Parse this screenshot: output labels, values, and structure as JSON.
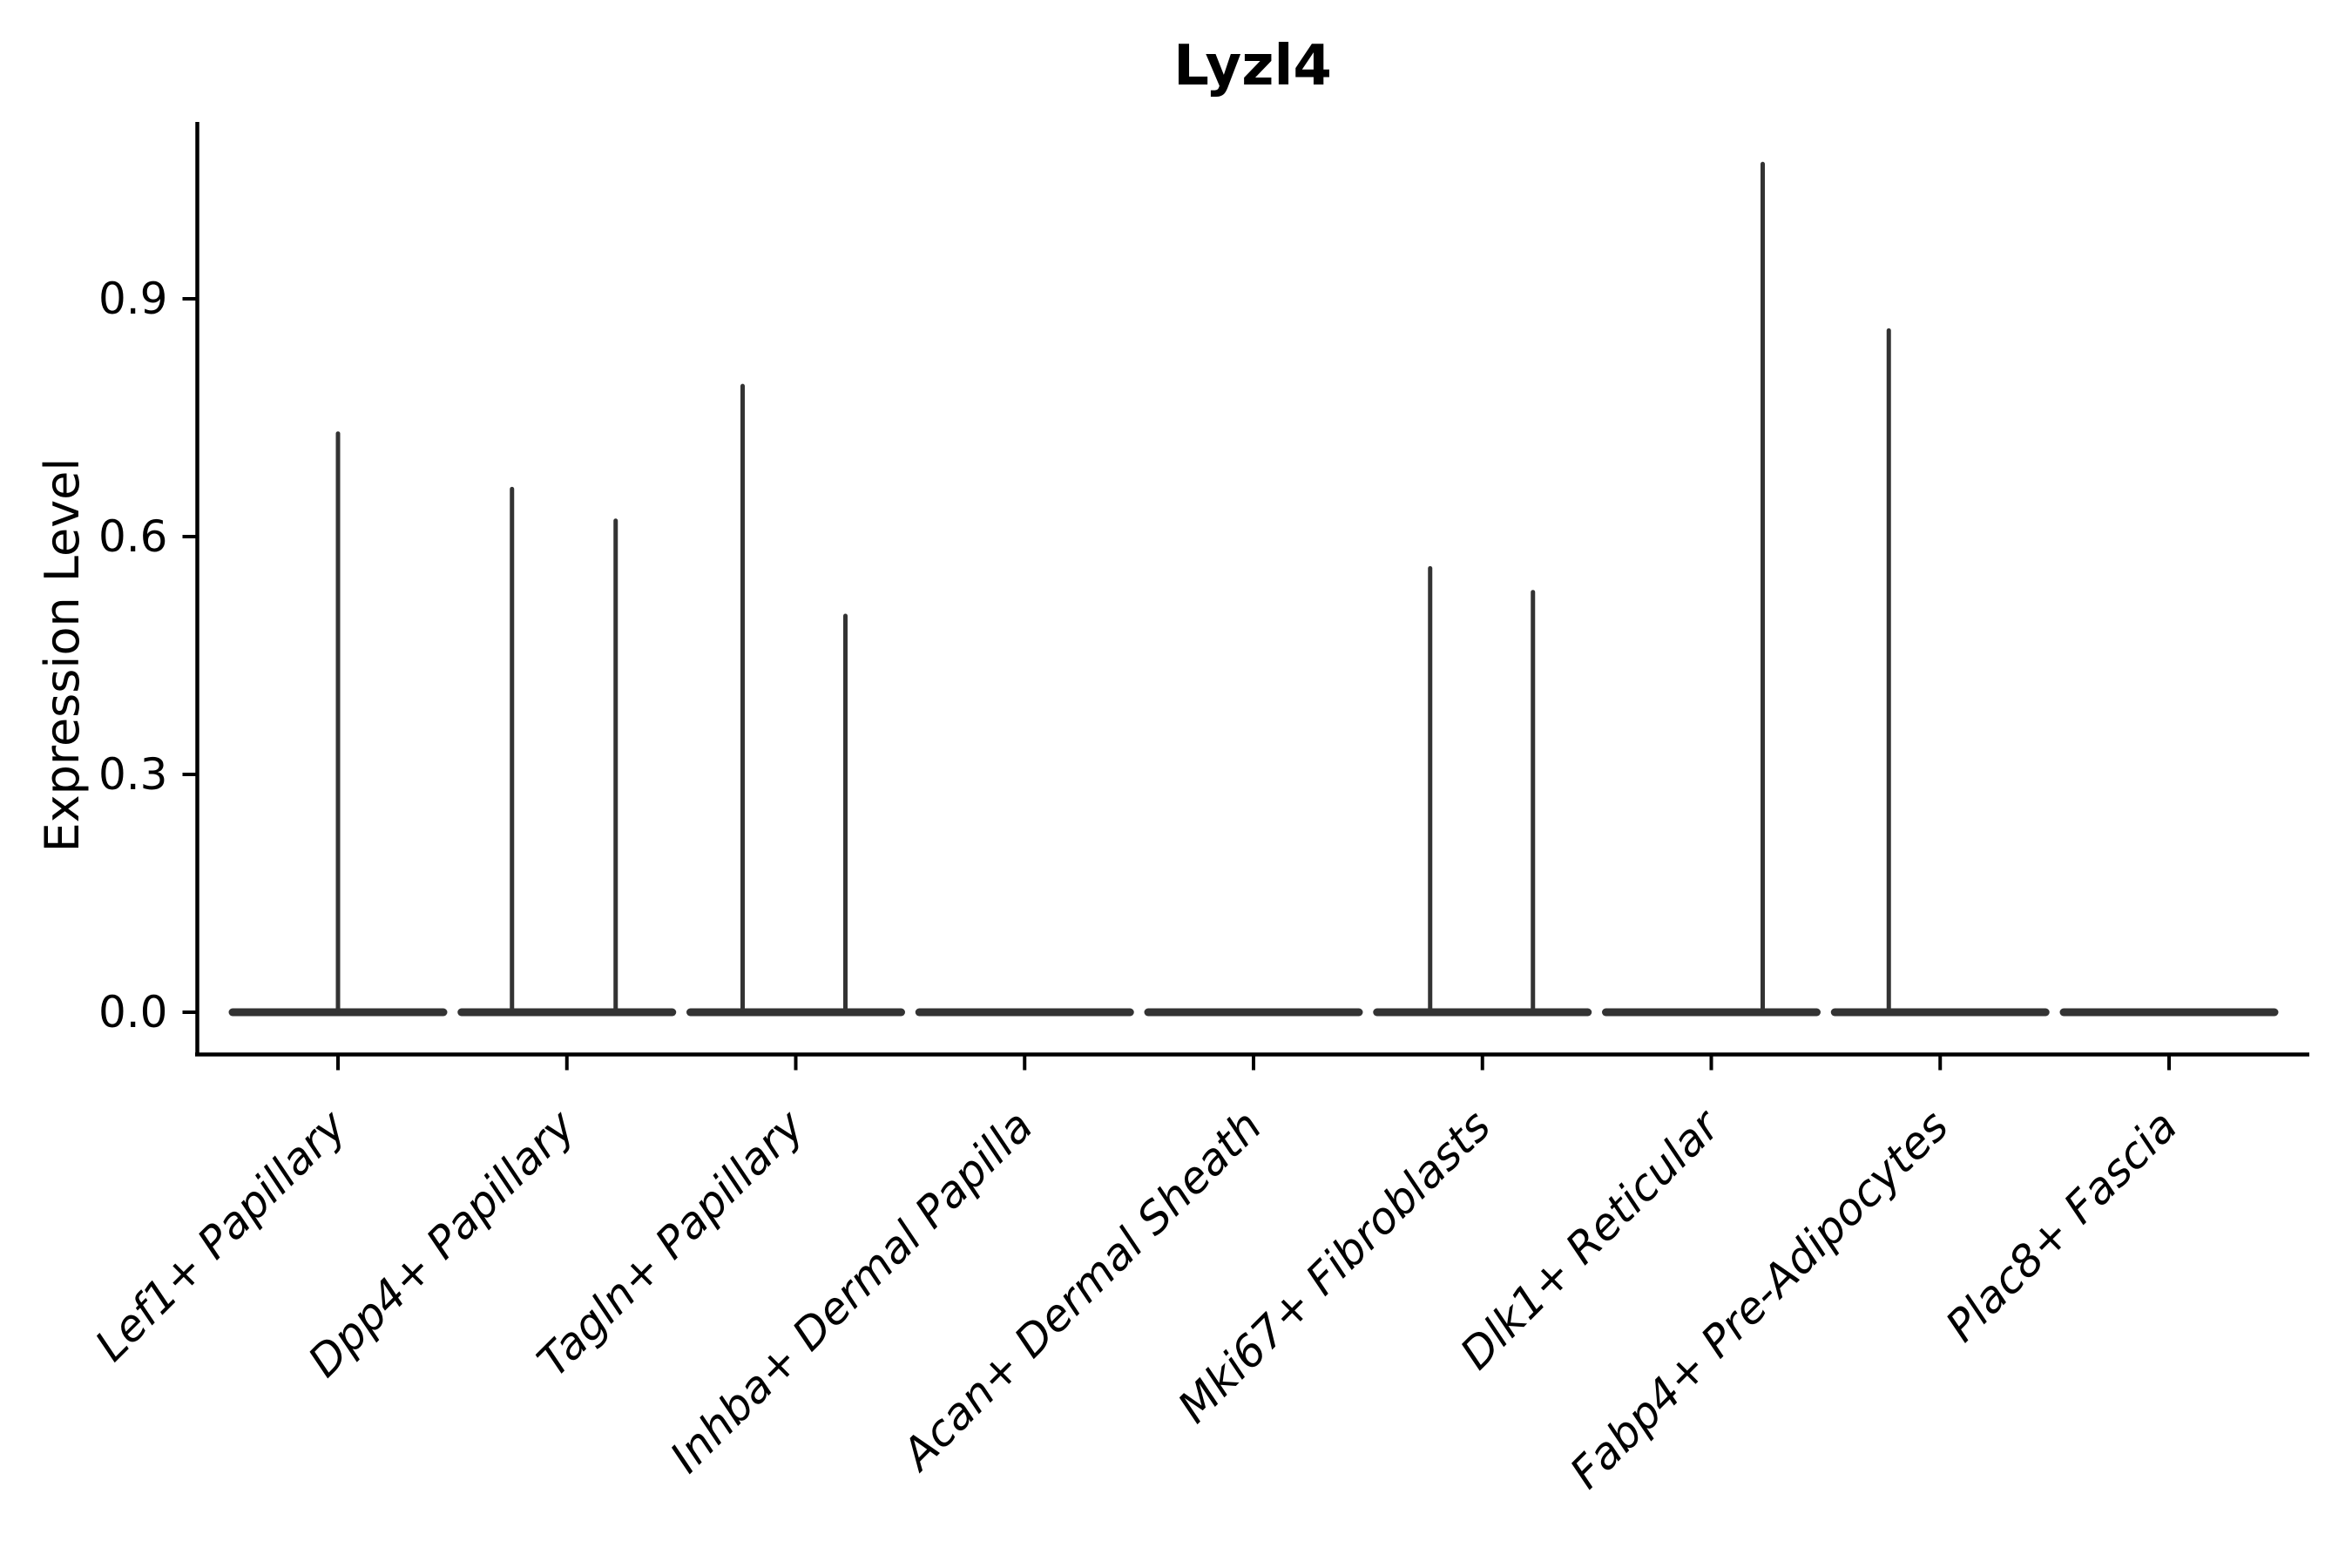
{
  "chart_data": {
    "type": "violin",
    "title": "Lyzl4",
    "ylabel": "Expression Level",
    "xlabel": "",
    "background": "#ffffff",
    "grid": false,
    "legend": "none",
    "ylim": [
      -0.05,
      1.12
    ],
    "y_ticks": [
      "0.0",
      "0.3",
      "0.6",
      "0.9"
    ],
    "categories": [
      "Lef1+ Papillary",
      "Dpp4+ Papillary",
      "Tagln+ Papillary",
      "Inhba+ Dermal Papilla",
      "Acan+ Dermal Sheath",
      "Mki67+ Fibroblasts",
      "Dlk1+ Reticular",
      "Fabp4+ Pre-Adipocytes",
      "Plac8+ Fascia"
    ],
    "violins": [
      {
        "category": "Lef1+ Papillary",
        "baseline_value": 0.0,
        "spikes": [
          {
            "dx": 0,
            "value": 0.73
          }
        ]
      },
      {
        "category": "Dpp4+ Papillary",
        "baseline_value": 0.0,
        "spikes": [
          {
            "dx": -63,
            "value": 0.66
          },
          {
            "dx": 56,
            "value": 0.62
          }
        ]
      },
      {
        "category": "Tagln+ Papillary",
        "baseline_value": 0.0,
        "spikes": [
          {
            "dx": -61,
            "value": 0.79
          },
          {
            "dx": 57,
            "value": 0.5
          }
        ]
      },
      {
        "category": "Inhba+ Dermal Papilla",
        "baseline_value": 0.0,
        "spikes": []
      },
      {
        "category": "Acan+ Dermal Sheath",
        "baseline_value": 0.0,
        "spikes": []
      },
      {
        "category": "Mki67+ Fibroblasts",
        "baseline_value": 0.0,
        "spikes": [
          {
            "dx": -60,
            "value": 0.56
          },
          {
            "dx": 58,
            "value": 0.53
          }
        ]
      },
      {
        "category": "Dlk1+ Reticular",
        "baseline_value": 0.0,
        "spikes": [
          {
            "dx": 59,
            "value": 1.07
          }
        ]
      },
      {
        "category": "Fabp4+ Pre-Adipocytes",
        "baseline_value": 0.0,
        "spikes": [
          {
            "dx": -59,
            "value": 0.86
          }
        ]
      },
      {
        "category": "Plac8+ Fascia",
        "baseline_value": 0.0,
        "spikes": []
      }
    ],
    "colors": {
      "violin": "#333333",
      "axis": "#000000",
      "text": "#000000",
      "background": "#ffffff"
    }
  }
}
